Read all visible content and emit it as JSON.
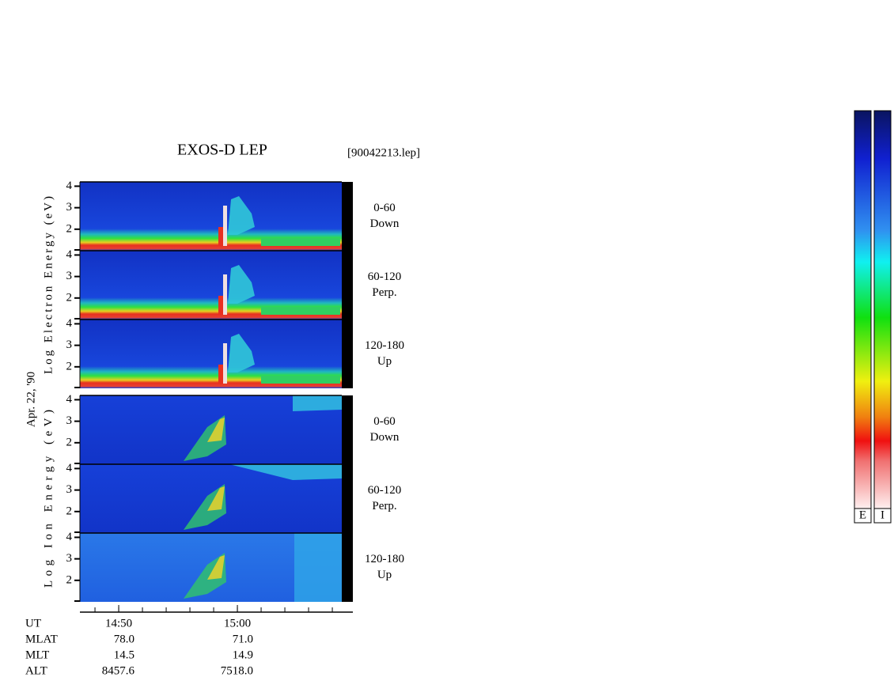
{
  "chart_data": {
    "type": "spectrogram",
    "title": "EXOS-D LEP",
    "file_label": "[90042213.lep]",
    "date_label": "Apr. 22, '90",
    "groups": [
      {
        "ylabel": "Log Electron Energy (eV)",
        "panels": [
          {
            "label": [
              "0-60",
              "Down"
            ]
          },
          {
            "label": [
              "60-120",
              "Perp."
            ]
          },
          {
            "label": [
              "120-180",
              "Up"
            ]
          }
        ]
      },
      {
        "ylabel": "Log Ion Energy (eV)",
        "panels": [
          {
            "label": [
              "0-60",
              "Down"
            ]
          },
          {
            "label": [
              "60-120",
              "Perp."
            ]
          },
          {
            "label": [
              "120-180",
              "Up"
            ]
          }
        ]
      }
    ],
    "ylim": [
      1,
      4.2
    ],
    "yticks": [
      2,
      3,
      4
    ],
    "xlim": [
      886.73,
      909.73
    ],
    "xticks": [
      {
        "value": 890,
        "label": "14:50"
      },
      {
        "value": 900,
        "label": "15:00"
      }
    ],
    "xminor_ticks": [
      888,
      890,
      892,
      894,
      896,
      898,
      900,
      902,
      904,
      906,
      908
    ],
    "ephemeris": [
      {
        "label": "UT"
      },
      {
        "label": "MLAT",
        "values": [
          "78.0",
          "71.0"
        ]
      },
      {
        "label": "MLT",
        "values": [
          "14.5",
          "14.9"
        ]
      },
      {
        "label": "ALT",
        "values": [
          "8457.6",
          "7518.0"
        ]
      }
    ],
    "colorbars": [
      "E",
      "I"
    ]
  }
}
